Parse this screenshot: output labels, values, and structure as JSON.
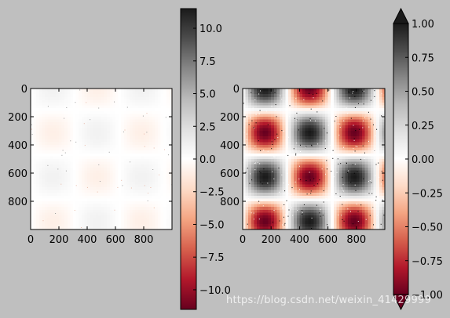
{
  "figure": {
    "background": "#bfbfbf",
    "colormap": "RdGy",
    "watermark": "https://blog.csdn.net/weixin_41429999"
  },
  "chart_data": [
    {
      "type": "heatmap",
      "title": "",
      "xlabel": "",
      "ylabel": "",
      "xlim": [
        0,
        1000
      ],
      "ylim": [
        1000,
        0
      ],
      "x_ticks": [
        0,
        200,
        400,
        600,
        800
      ],
      "y_ticks": [
        0,
        200,
        400,
        600,
        800
      ],
      "pattern": "sin(x/100)*cos(y/100) + noise",
      "amplitude": 1.0,
      "noise_spikes": "sparse",
      "color_limits": [
        -11.5,
        11.5
      ],
      "colorbar": {
        "extend": "neither",
        "ticks": [
          10.0,
          7.5,
          5.0,
          2.5,
          0.0,
          -2.5,
          -5.0,
          -7.5,
          -10.0
        ],
        "tick_labels": [
          "10.0",
          "7.5",
          "5.0",
          "2.5",
          "0.0",
          "−2.5",
          "−5.0",
          "−7.5",
          "−10.0"
        ]
      }
    },
    {
      "type": "heatmap",
      "title": "",
      "xlabel": "",
      "ylabel": "",
      "xlim": [
        0,
        1000
      ],
      "ylim": [
        1000,
        0
      ],
      "x_ticks": [
        0,
        200,
        400,
        600,
        800
      ],
      "y_ticks": [
        0,
        200,
        400,
        600,
        800
      ],
      "pattern": "sin(x/100)*cos(y/100) + noise",
      "amplitude": 1.0,
      "noise_spikes": "sparse",
      "color_limits": [
        -1,
        1
      ],
      "colorbar": {
        "extend": "both",
        "ticks": [
          1.0,
          0.75,
          0.5,
          0.25,
          0.0,
          -0.25,
          -0.5,
          -0.75,
          -1.0
        ],
        "tick_labels": [
          "1.00",
          "0.75",
          "0.50",
          "0.25",
          "0.00",
          "−0.25",
          "−0.50",
          "−0.75",
          "−1.00"
        ]
      }
    }
  ]
}
